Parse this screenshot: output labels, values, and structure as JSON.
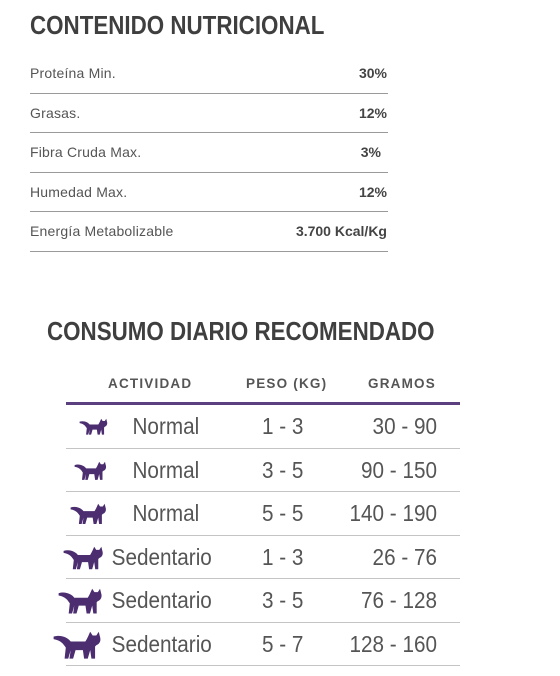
{
  "nutricional": {
    "title": "CONTENIDO NUTRICIONAL",
    "rows": [
      {
        "label": "Proteína Min.",
        "value": "30%"
      },
      {
        "label": "Grasas.",
        "value": "12%"
      },
      {
        "label": "Fibra Cruda Max.",
        "value": "3%"
      },
      {
        "label": "Humedad Max.",
        "value": "12%"
      },
      {
        "label": "Energía Metabolizable",
        "value": "3.700 Kcal/Kg"
      }
    ]
  },
  "consumo": {
    "title": "CONSUMO DIARIO RECOMENDADO",
    "headers": {
      "actividad": "ACTIVIDAD",
      "peso": "PESO (KG)",
      "gramos": "GRAMOS"
    },
    "rows": [
      {
        "icon": "cat-icon",
        "actividad": "Normal",
        "peso": "1 - 3",
        "gramos": "30 - 90"
      },
      {
        "icon": "cat-icon",
        "actividad": "Normal",
        "peso": "3 - 5",
        "gramos": "90 - 150"
      },
      {
        "icon": "cat-icon",
        "actividad": "Normal",
        "peso": "5 - 5",
        "gramos": "140 - 190"
      },
      {
        "icon": "cat-icon",
        "actividad": "Sedentario",
        "peso": "1 - 3",
        "gramos": "26 - 76"
      },
      {
        "icon": "cat-icon",
        "actividad": "Sedentario",
        "peso": "3 - 5",
        "gramos": "76 - 128"
      },
      {
        "icon": "cat-icon",
        "actividad": "Sedentario",
        "peso": "5 - 7",
        "gramos": "128 - 160"
      }
    ],
    "accent_color": "#5b3f7e"
  }
}
